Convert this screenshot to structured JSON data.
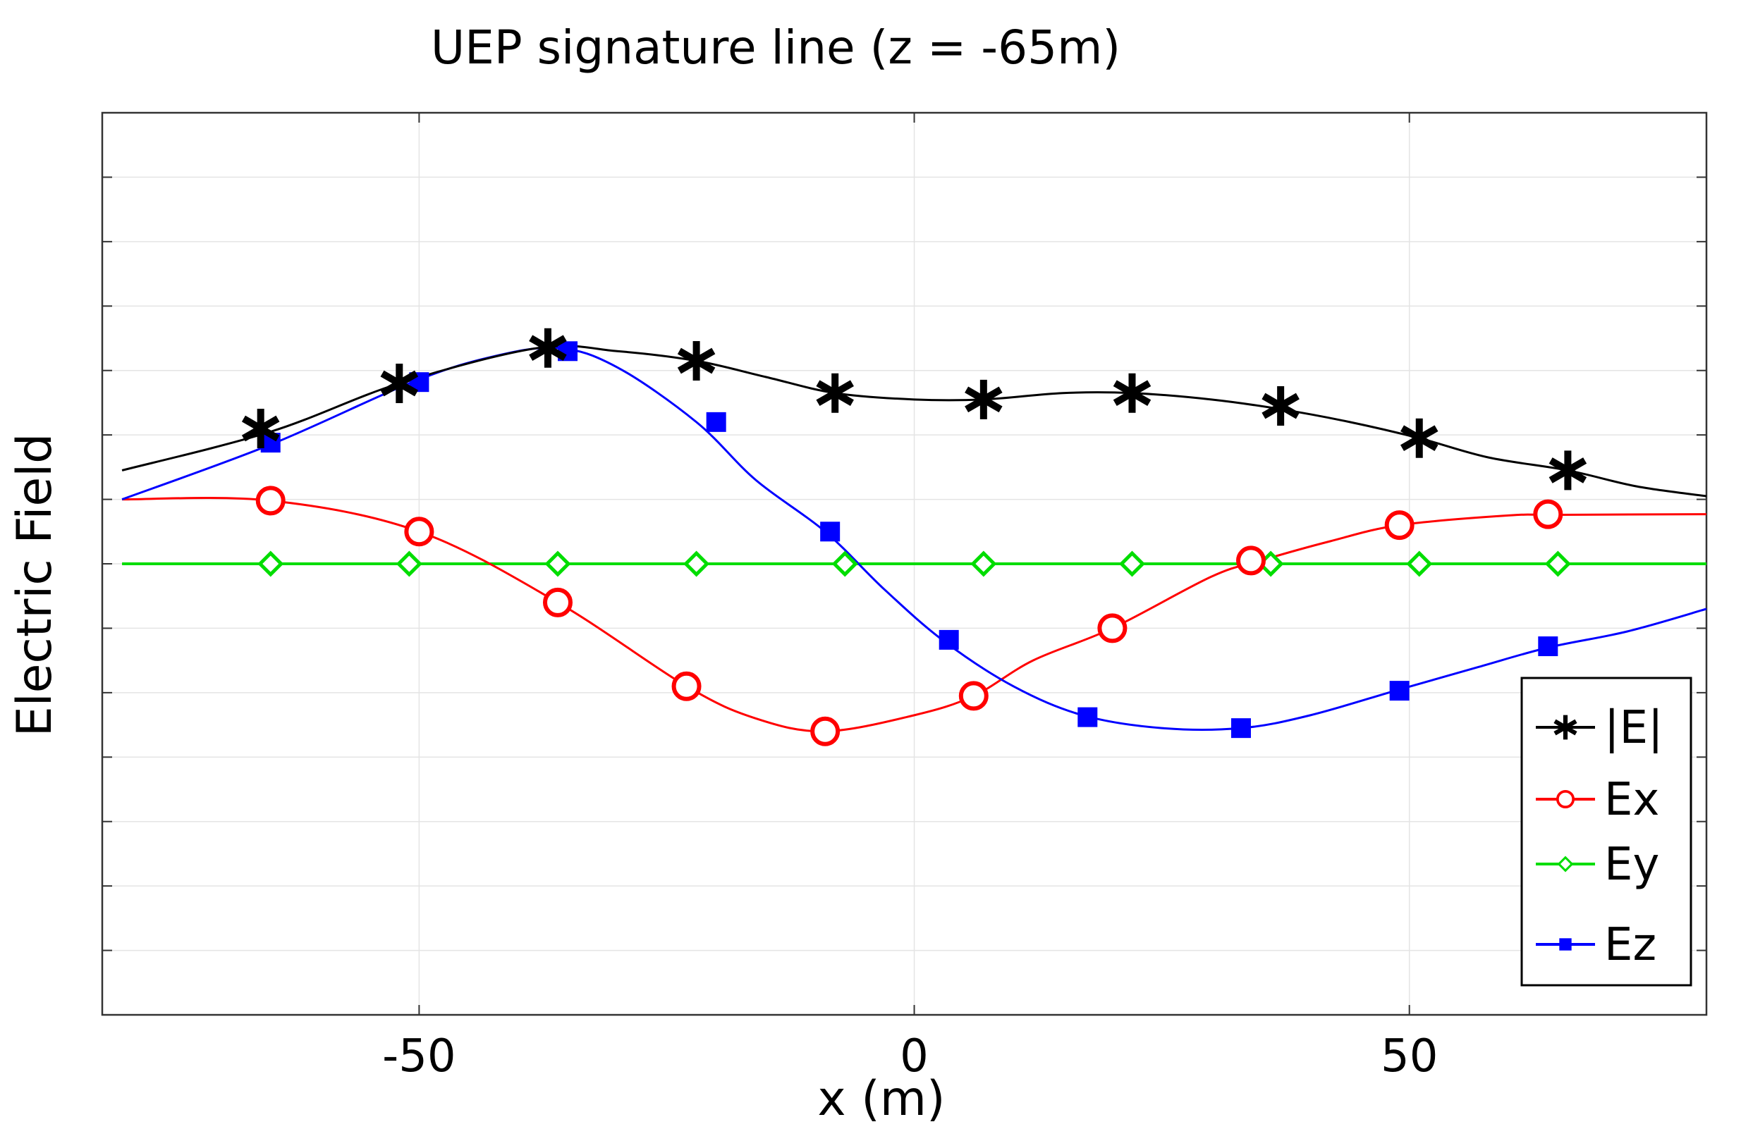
{
  "chart_data": {
    "type": "line",
    "title": "UEP signature line (z = -65m)",
    "xlabel": "x (m)",
    "ylabel": "Electric Field",
    "xlim": [
      -82,
      80
    ],
    "ylim": [
      -7,
      7
    ],
    "xticks": [
      -50,
      0,
      50
    ],
    "xtick_labels": [
      "-50",
      "0",
      "50"
    ],
    "yticks": [
      -6,
      -5,
      -4,
      -3,
      -2,
      -1,
      0,
      1,
      2,
      3,
      4,
      5,
      6
    ],
    "grid": true,
    "legend_position": "bottom-right",
    "series": [
      {
        "name": "|E|",
        "color": "#000000",
        "marker": "star",
        "curve": [
          [
            -80,
            1.45
          ],
          [
            -65,
            2.05
          ],
          [
            -52,
            2.8
          ],
          [
            -38,
            3.35
          ],
          [
            -30,
            3.3
          ],
          [
            -22,
            3.15
          ],
          [
            -15,
            2.9
          ],
          [
            -8,
            2.65
          ],
          [
            0,
            2.55
          ],
          [
            7,
            2.55
          ],
          [
            15,
            2.65
          ],
          [
            22,
            2.65
          ],
          [
            30,
            2.55
          ],
          [
            37,
            2.4
          ],
          [
            44,
            2.2
          ],
          [
            51,
            1.95
          ],
          [
            58,
            1.65
          ],
          [
            66,
            1.45
          ],
          [
            73,
            1.2
          ],
          [
            80,
            1.05
          ]
        ],
        "markers": [
          [
            -66,
            2.1
          ],
          [
            -52,
            2.8
          ],
          [
            -37,
            3.35
          ],
          [
            -22,
            3.15
          ],
          [
            -8,
            2.65
          ],
          [
            7,
            2.55
          ],
          [
            22,
            2.65
          ],
          [
            37,
            2.45
          ],
          [
            51,
            1.95
          ],
          [
            66,
            1.45
          ]
        ]
      },
      {
        "name": "Ex",
        "color": "#ff0000",
        "marker": "circle",
        "curve": [
          [
            -80,
            1.0
          ],
          [
            -65,
            0.98
          ],
          [
            -50,
            0.5
          ],
          [
            -36,
            -0.6
          ],
          [
            -23,
            -1.9
          ],
          [
            -16,
            -2.4
          ],
          [
            -9,
            -2.6
          ],
          [
            0,
            -2.35
          ],
          [
            6,
            -2.05
          ],
          [
            12,
            -1.5
          ],
          [
            20,
            -1.0
          ],
          [
            30,
            -0.2
          ],
          [
            35,
            0.05
          ],
          [
            42,
            0.35
          ],
          [
            49,
            0.6
          ],
          [
            60,
            0.75
          ],
          [
            65,
            0.76
          ],
          [
            80,
            0.77
          ]
        ],
        "markers": [
          [
            -65,
            0.98
          ],
          [
            -50,
            0.5
          ],
          [
            -36,
            -0.6
          ],
          [
            -23,
            -1.9
          ],
          [
            -9,
            -2.6
          ],
          [
            6,
            -2.05
          ],
          [
            20,
            -1.0
          ],
          [
            34,
            0.05
          ],
          [
            49,
            0.6
          ],
          [
            64,
            0.77
          ]
        ]
      },
      {
        "name": "Ey",
        "color": "#00dd00",
        "marker": "diamond",
        "curve": [
          [
            -80,
            0.0
          ],
          [
            80,
            0.0
          ]
        ],
        "markers": [
          [
            -65,
            0.0
          ],
          [
            -51,
            0.0
          ],
          [
            -36,
            0.0
          ],
          [
            -22,
            0.0
          ],
          [
            -7,
            0.0
          ],
          [
            7,
            0.0
          ],
          [
            22,
            0.0
          ],
          [
            36,
            0.0
          ],
          [
            51,
            0.0
          ],
          [
            65,
            0.0
          ]
        ]
      },
      {
        "name": "Ez",
        "color": "#0000ff",
        "marker": "square",
        "curve": [
          [
            -80,
            1.0
          ],
          [
            -65,
            1.85
          ],
          [
            -51,
            2.8
          ],
          [
            -43,
            3.2
          ],
          [
            -36,
            3.35
          ],
          [
            -30,
            3.05
          ],
          [
            -22,
            2.2
          ],
          [
            -16,
            1.3
          ],
          [
            -9,
            0.5
          ],
          [
            -3,
            -0.4
          ],
          [
            3,
            -1.2
          ],
          [
            10,
            -1.9
          ],
          [
            17,
            -2.35
          ],
          [
            25,
            -2.55
          ],
          [
            33,
            -2.55
          ],
          [
            40,
            -2.35
          ],
          [
            49,
            -1.95
          ],
          [
            57,
            -1.6
          ],
          [
            64,
            -1.3
          ],
          [
            72,
            -1.05
          ],
          [
            80,
            -0.7
          ]
        ],
        "markers": [
          [
            -65,
            1.88
          ],
          [
            -50,
            2.82
          ],
          [
            -35,
            3.3
          ],
          [
            -20,
            2.2
          ],
          [
            -8.5,
            0.5
          ],
          [
            3.5,
            -1.18
          ],
          [
            17.5,
            -2.38
          ],
          [
            33,
            -2.55
          ],
          [
            49,
            -1.97
          ],
          [
            64,
            -1.28
          ]
        ]
      }
    ]
  }
}
